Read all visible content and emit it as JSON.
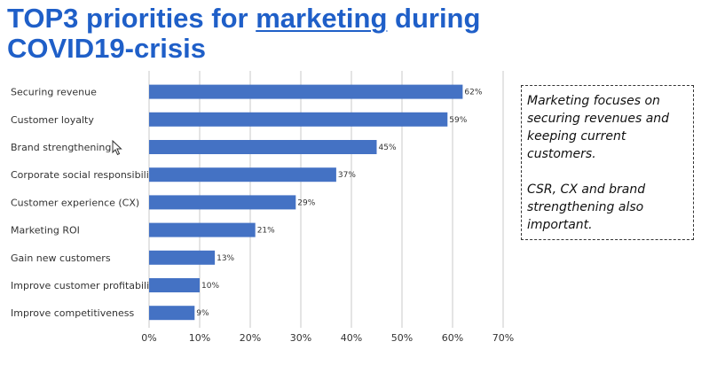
{
  "title": {
    "part1": "TOP3 priorities for ",
    "underlined": "marketing",
    "part2": " during COVID19-crisis"
  },
  "note": {
    "paragraph1": "Marketing focuses on securing revenues and keeping current customers.",
    "paragraph2": "CSR, CX and brand strengthening also important."
  },
  "colors": {
    "bar": "#4472c4",
    "title": "#1f5fc8",
    "grid": "#c8c8c8"
  },
  "chart_data": {
    "type": "bar",
    "orientation": "horizontal",
    "categories": [
      "Securing revenue",
      "Customer loyalty",
      "Brand strengthening",
      "Corporate social responsibility",
      "Customer experience (CX)",
      "Marketing ROI",
      "Gain new customers",
      "Improve customer profitability",
      "Improve competitiveness"
    ],
    "values": [
      62,
      59,
      45,
      37,
      29,
      21,
      13,
      10,
      9
    ],
    "value_labels": [
      "62%",
      "59%",
      "45%",
      "37%",
      "29%",
      "21%",
      "13%",
      "10%",
      "9%"
    ],
    "xlim": [
      0,
      70
    ],
    "x_ticks": [
      0,
      10,
      20,
      30,
      40,
      50,
      60,
      70
    ],
    "x_tick_labels": [
      "0%",
      "10%",
      "20%",
      "30%",
      "40%",
      "50%",
      "60%",
      "70%"
    ],
    "grid": true
  }
}
